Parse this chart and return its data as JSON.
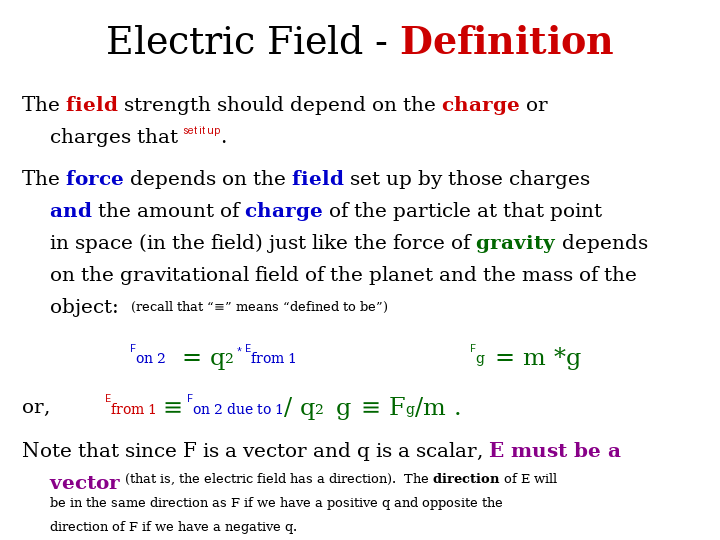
{
  "background_color": "#ffffff",
  "colors": {
    "black": "#000000",
    "red": "#cc0000",
    "blue": "#0000cc",
    "green": "#006600",
    "purple": "#880088"
  }
}
